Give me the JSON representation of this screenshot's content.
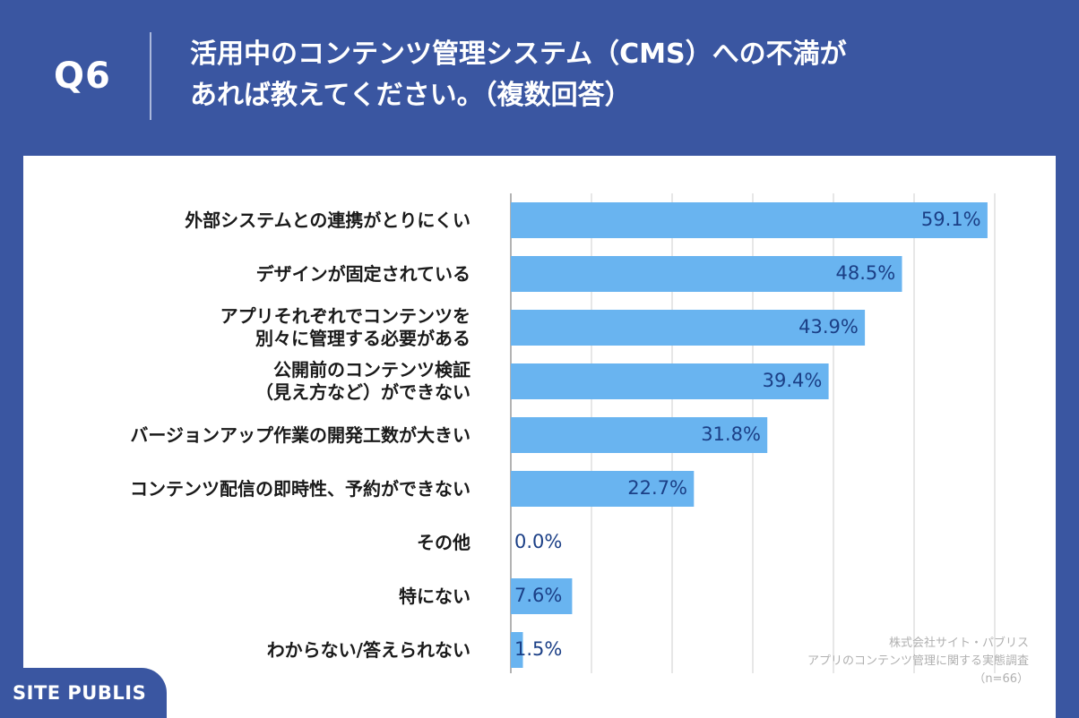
{
  "question_number": "Q6",
  "title_line1": "活用中のコンテンツ管理システム（CMS）への不満が",
  "title_line2": "あれば教えてください。（複数回答）",
  "brand": "SITE PUBLIS",
  "credit": {
    "company": "株式会社サイト・パブリス",
    "survey": "アプリのコンテンツ管理に関する実態調査",
    "sample": "（n=66）"
  },
  "colors": {
    "header_bg": "#3a56a1",
    "bar": "#69b4f0",
    "value_text": "#1b3f86",
    "grid": "#cfcfcf"
  },
  "chart_data": {
    "type": "bar",
    "orientation": "horizontal",
    "categories": [
      "外部システムとの連携がとりにくい",
      "デザインが固定されている",
      "アプリそれぞれでコンテンツを\n別々に管理する必要がある",
      "公開前のコンテンツ検証\n（見え方など）ができない",
      "バージョンアップ作業の開発工数が大きい",
      "コンテンツ配信の即時性、予約ができない",
      "その他",
      "特にない",
      "わからない/答えられない"
    ],
    "values": [
      59.1,
      48.5,
      43.9,
      39.4,
      31.8,
      22.7,
      0.0,
      7.6,
      1.5
    ],
    "value_labels": [
      "59.1%",
      "48.5%",
      "43.9%",
      "39.4%",
      "31.8%",
      "22.7%",
      "0.0%",
      "7.6%",
      "1.5%"
    ],
    "xlim": [
      0,
      60
    ],
    "grid": true,
    "unit": "%"
  }
}
